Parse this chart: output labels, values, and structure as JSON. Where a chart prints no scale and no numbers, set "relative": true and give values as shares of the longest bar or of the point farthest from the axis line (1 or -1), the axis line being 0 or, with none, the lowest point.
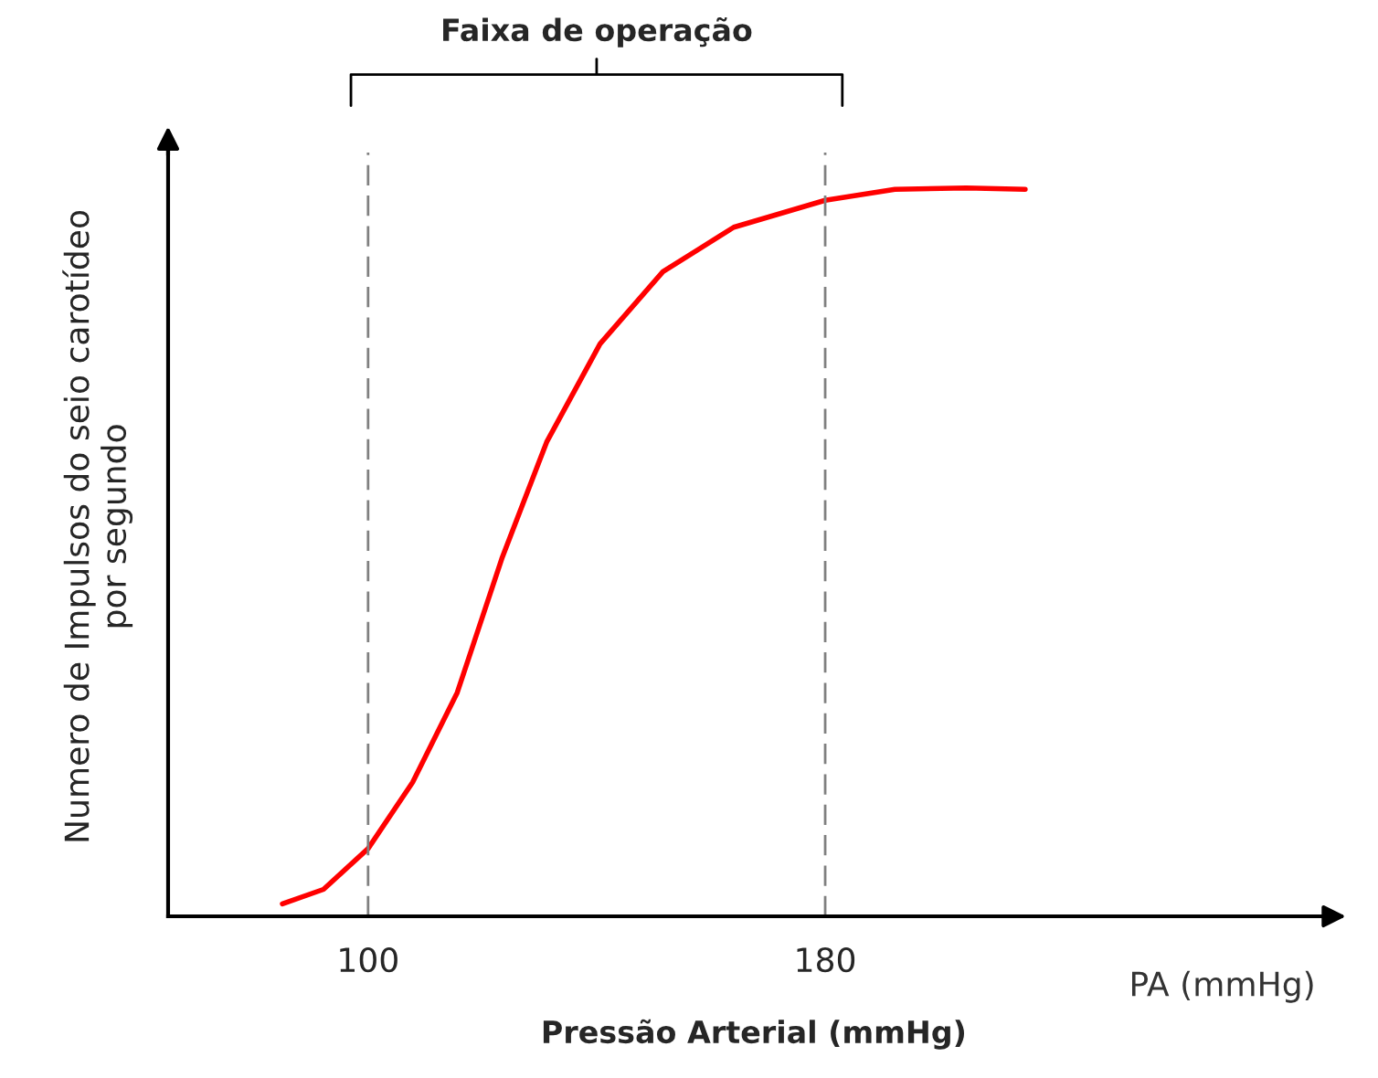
{
  "chart_data": {
    "type": "line",
    "relative": true,
    "xlabel": "Pressão Arterial (mmHg)",
    "ylabel": "Numero de Impulsos do seio carotídeo\npor segundo",
    "x": [
      85,
      92.2,
      100,
      107.8,
      115.6,
      123.4,
      131.25,
      140.6,
      151.6,
      164,
      180,
      192.2,
      204.7,
      215
    ],
    "series": [
      {
        "color": "#ff0000",
        "values": [
          0.017,
          0.037,
          0.093,
          0.184,
          0.307,
          0.491,
          0.651,
          0.786,
          0.885,
          0.946,
          0.983,
          0.998,
          1.0,
          0.998
        ]
      }
    ],
    "xlim": [
      65,
      270
    ],
    "xticks": [
      100,
      180
    ],
    "ref_lines": [
      {
        "axis": "x",
        "value": 100,
        "line_style": "dashed",
        "color": "#808080"
      },
      {
        "axis": "x",
        "value": 180,
        "line_style": "dashed",
        "color": "#808080"
      }
    ],
    "annotations": [
      "Faixa de operação",
      "PA (mmHg)"
    ],
    "grid": false,
    "line_style": "solid",
    "marker": "none"
  }
}
